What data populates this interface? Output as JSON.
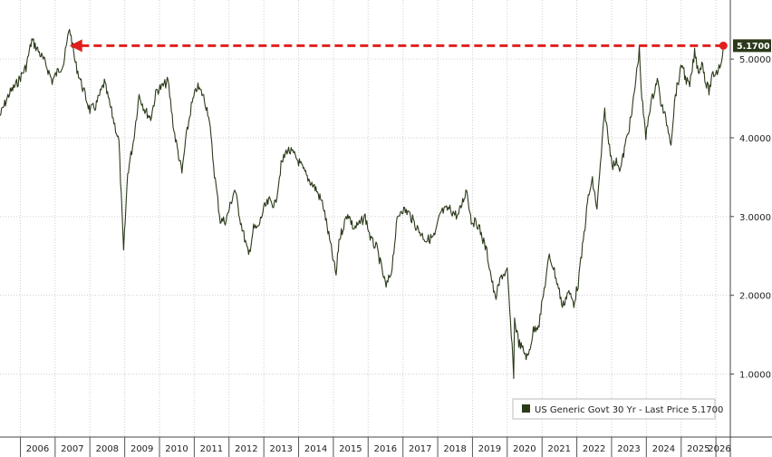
{
  "chart_data": {
    "type": "line",
    "title": "",
    "xlabel": "",
    "ylabel": "",
    "ylim": [
      0.2,
      5.75
    ],
    "xlim": [
      "2005-06-01",
      "2026-06-01"
    ],
    "y_ticks": [
      "1.0000",
      "2.0000",
      "3.0000",
      "4.0000",
      "5.0000"
    ],
    "x_ticks": [
      "2006",
      "2007",
      "2008",
      "2009",
      "2010",
      "2011",
      "2012",
      "2013",
      "2014",
      "2015",
      "2016",
      "2017",
      "2018",
      "2019",
      "2020",
      "2021",
      "2022",
      "2023",
      "2024",
      "2025",
      "2026"
    ],
    "grid": true,
    "legend": "bottom-right",
    "series": [
      {
        "name": "US Generic Govt 30 Yr - Last Price 5.1700",
        "color": "#2b3a1a",
        "x": [
          "2005-06-01",
          "2005-09-01",
          "2005-12-01",
          "2006-03-01",
          "2006-05-01",
          "2006-07-01",
          "2006-10-01",
          "2006-12-01",
          "2007-02-01",
          "2007-04-01",
          "2007-06-01",
          "2007-08-01",
          "2007-10-01",
          "2008-01-01",
          "2008-03-01",
          "2008-06-01",
          "2008-09-01",
          "2008-11-01",
          "2008-12-20",
          "2009-02-01",
          "2009-04-01",
          "2009-06-01",
          "2009-08-01",
          "2009-10-01",
          "2009-12-01",
          "2010-02-01",
          "2010-04-01",
          "2010-06-01",
          "2010-08-25",
          "2010-10-01",
          "2010-12-01",
          "2011-02-01",
          "2011-04-01",
          "2011-06-01",
          "2011-08-01",
          "2011-10-01",
          "2011-12-01",
          "2012-03-01",
          "2012-05-01",
          "2012-07-25",
          "2012-09-15",
          "2012-11-01",
          "2013-01-01",
          "2013-03-01",
          "2013-05-01",
          "2013-07-01",
          "2013-09-01",
          "2013-11-01",
          "2014-01-01",
          "2014-04-01",
          "2014-07-01",
          "2014-09-15",
          "2015-01-30",
          "2015-03-01",
          "2015-06-01",
          "2015-08-01",
          "2015-10-01",
          "2015-12-01",
          "2016-02-01",
          "2016-04-01",
          "2016-07-08",
          "2016-09-01",
          "2016-11-01",
          "2016-12-15",
          "2017-03-01",
          "2017-06-01",
          "2017-08-01",
          "2017-09-07",
          "2017-12-01",
          "2018-02-01",
          "2018-05-01",
          "2018-08-01",
          "2018-11-01",
          "2018-12-20",
          "2019-03-01",
          "2019-06-01",
          "2019-08-28",
          "2019-11-01",
          "2020-01-01",
          "2020-03-09",
          "2020-03-18",
          "2020-05-01",
          "2020-08-04",
          "2020-10-01",
          "2020-12-01",
          "2021-03-18",
          "2021-05-01",
          "2021-07-01",
          "2021-08-03",
          "2021-10-01",
          "2021-12-01",
          "2022-01-15",
          "2022-03-01",
          "2022-05-01",
          "2022-06-14",
          "2022-08-01",
          "2022-10-21",
          "2022-12-01",
          "2023-01-15",
          "2023-03-01",
          "2023-04-05",
          "2023-06-01",
          "2023-08-01",
          "2023-10-19",
          "2023-11-15",
          "2023-12-27",
          "2024-02-01",
          "2024-04-25",
          "2024-06-01",
          "2024-08-01",
          "2024-09-16",
          "2024-11-01",
          "2025-01-14",
          "2025-02-15",
          "2025-04-01",
          "2025-05-22",
          "2025-07-01",
          "2025-08-15",
          "2025-09-15",
          "2025-10-20",
          "2025-12-01",
          "2026-01-15",
          "2026-02-20",
          "2026-03-20"
        ],
        "values": [
          4.28,
          4.55,
          4.7,
          4.9,
          5.24,
          5.12,
          4.92,
          4.72,
          4.85,
          4.95,
          5.4,
          4.95,
          4.7,
          4.35,
          4.4,
          4.7,
          4.25,
          3.95,
          2.55,
          3.55,
          3.95,
          4.55,
          4.35,
          4.25,
          4.6,
          4.65,
          4.72,
          4.1,
          3.55,
          3.95,
          4.4,
          4.65,
          4.55,
          4.3,
          3.55,
          2.95,
          2.95,
          3.35,
          2.95,
          2.5,
          2.85,
          2.85,
          3.1,
          3.2,
          3.15,
          3.65,
          3.85,
          3.8,
          3.7,
          3.5,
          3.35,
          3.15,
          2.25,
          2.7,
          3.05,
          2.85,
          2.9,
          3.0,
          2.7,
          2.6,
          2.1,
          2.3,
          2.95,
          3.1,
          3.05,
          2.85,
          2.75,
          2.7,
          2.75,
          3.05,
          3.1,
          3.0,
          3.35,
          2.95,
          2.9,
          2.55,
          1.95,
          2.25,
          2.3,
          1.0,
          1.7,
          1.4,
          1.2,
          1.55,
          1.65,
          2.5,
          2.35,
          2.05,
          1.85,
          2.05,
          1.9,
          2.15,
          2.6,
          3.25,
          3.45,
          3.1,
          4.35,
          3.95,
          3.65,
          3.7,
          3.6,
          3.95,
          4.3,
          5.12,
          4.5,
          4.0,
          4.35,
          4.75,
          4.45,
          4.2,
          3.95,
          4.55,
          4.95,
          4.75,
          4.65,
          5.08,
          4.85,
          4.95,
          4.7,
          4.6,
          4.8,
          4.85,
          4.95,
          5.17
        ]
      }
    ],
    "annotations": [
      {
        "type": "arrow",
        "color": "#e0201e",
        "style": "dashed",
        "from_x": "2026-03-20",
        "to_x": "2007-06-01",
        "y": 5.17
      }
    ],
    "last_value_label": "5.1700",
    "last_value_color": "#2b3a1a",
    "legend_text": "US Generic Govt 30 Yr - Last Price 5.1700"
  }
}
